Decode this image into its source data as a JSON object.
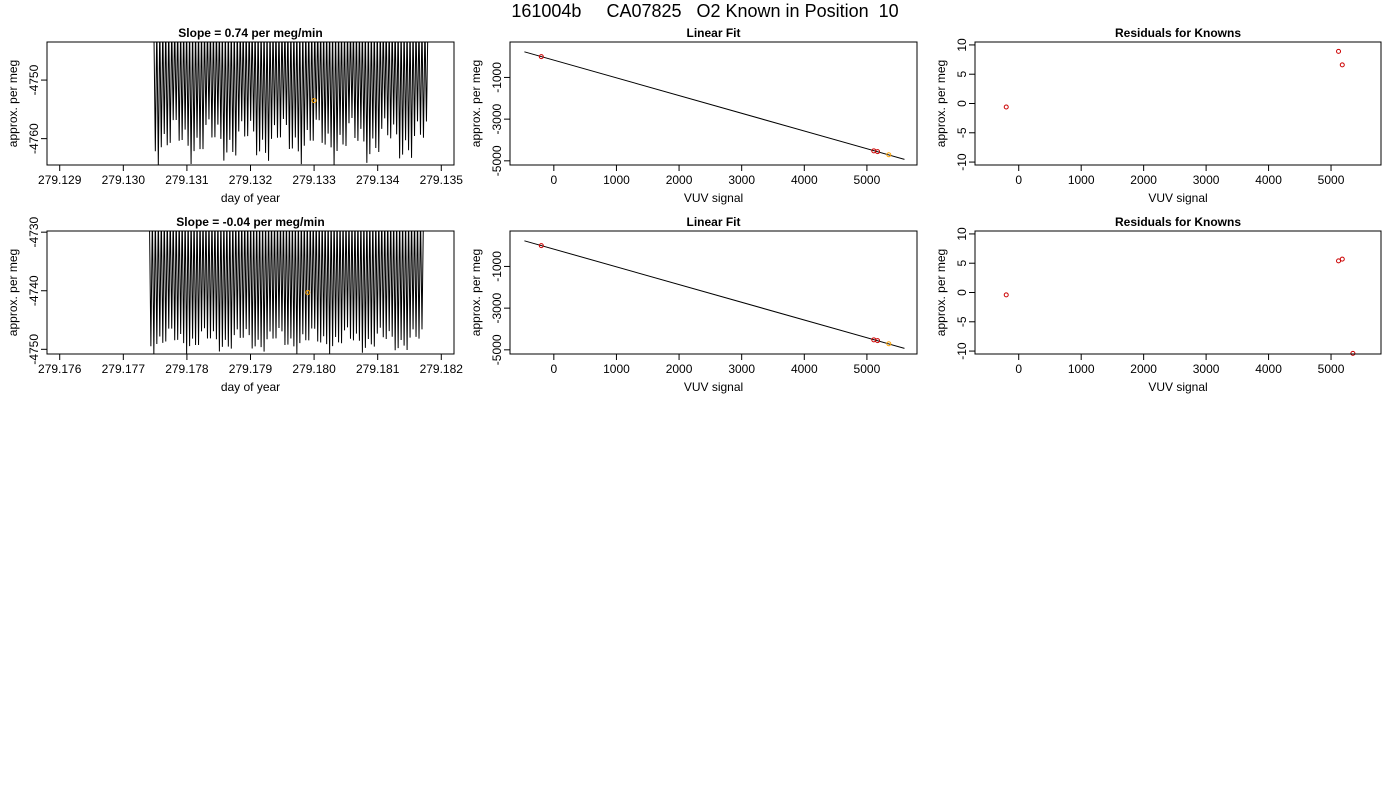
{
  "page_title": "161004b     CA07825   O2 Known in Position  10",
  "chart_data": [
    {
      "type": "line",
      "title": "Slope =  0.74  per meg/min",
      "xlabel": "day of year",
      "ylabel": "approx. per meg",
      "xlim": [
        279.1288,
        279.1352
      ],
      "ylim": [
        -4764.5,
        -4743.5
      ],
      "xticks": [
        "279.129",
        "279.130",
        "279.131",
        "279.132",
        "279.133",
        "279.134",
        "279.135"
      ],
      "yticks": [
        "-4750",
        "-4760"
      ],
      "ytick_values": [
        -4750,
        -4760
      ],
      "grid": false,
      "signal": {
        "x_start": 279.13048,
        "x_end": 279.13479,
        "n_cycles": 92,
        "y_high": -4743.5,
        "y_low_range": [
          -4756,
          -4764.5
        ]
      },
      "marker": {
        "x": 279.133,
        "y": -4753.5,
        "color": "#ffa500"
      }
    },
    {
      "type": "scatter",
      "title": "Linear Fit",
      "xlabel": "VUV signal",
      "ylabel": "approx. per meg",
      "xlim": [
        -700,
        5800
      ],
      "ylim": [
        -5200,
        700
      ],
      "xticks": [
        "0",
        "1000",
        "2000",
        "3000",
        "4000",
        "5000"
      ],
      "xtick_values": [
        0,
        1000,
        2000,
        3000,
        4000,
        5000
      ],
      "yticks": [
        "-1000",
        "-3000",
        "-5000"
      ],
      "ytick_values": [
        -1000,
        -3000,
        -5000
      ],
      "fit_line": [
        [
          -470,
          230
        ],
        [
          5600,
          -4930
        ]
      ],
      "points": [
        {
          "x": -200,
          "y": 0,
          "color": "#cc0000"
        },
        {
          "x": 5110,
          "y": -4520,
          "color": "#cc0000"
        },
        {
          "x": 5170,
          "y": -4560,
          "color": "#cc0000"
        },
        {
          "x": 5350,
          "y": -4710,
          "color": "#ffa500"
        }
      ]
    },
    {
      "type": "scatter",
      "title": "Residuals for Knowns",
      "xlabel": "VUV signal",
      "ylabel": "approx. per meg",
      "xlim": [
        -700,
        5800
      ],
      "ylim": [
        -10.5,
        10.5
      ],
      "xticks": [
        "0",
        "1000",
        "2000",
        "3000",
        "4000",
        "5000"
      ],
      "xtick_values": [
        0,
        1000,
        2000,
        3000,
        4000,
        5000
      ],
      "yticks": [
        "10",
        "5",
        "0",
        "-5",
        "-10"
      ],
      "ytick_values": [
        10,
        5,
        0,
        -5,
        -10
      ],
      "points": [
        {
          "x": -200,
          "y": -0.6,
          "color": "#cc0000"
        },
        {
          "x": 5120,
          "y": 8.9,
          "color": "#cc0000"
        },
        {
          "x": 5180,
          "y": 6.6,
          "color": "#cc0000"
        }
      ]
    },
    {
      "type": "line",
      "title": "Slope =  -0.04  per meg/min",
      "xlabel": "day of year",
      "ylabel": "approx. per meg",
      "xlim": [
        279.1758,
        279.1822
      ],
      "ylim": [
        -4750.8,
        -4729.8
      ],
      "xticks": [
        "279.176",
        "279.177",
        "279.178",
        "279.179",
        "279.180",
        "279.181",
        "279.182"
      ],
      "yticks": [
        "-4730",
        "-4740",
        "-4750"
      ],
      "ytick_values": [
        -4730,
        -4740,
        -4750
      ],
      "grid": false,
      "signal": {
        "x_start": 279.17741,
        "x_end": 279.18172,
        "n_cycles": 92,
        "y_high": -4729.8,
        "y_low_range": [
          -4746,
          -4750.8
        ]
      },
      "marker": {
        "x": 279.1799,
        "y": -4740.3,
        "color": "#ffa500"
      }
    },
    {
      "type": "scatter",
      "title": "Linear Fit",
      "xlabel": "VUV signal",
      "ylabel": "approx. per meg",
      "xlim": [
        -700,
        5800
      ],
      "ylim": [
        -5200,
        700
      ],
      "xticks": [
        "0",
        "1000",
        "2000",
        "3000",
        "4000",
        "5000"
      ],
      "xtick_values": [
        0,
        1000,
        2000,
        3000,
        4000,
        5000
      ],
      "yticks": [
        "-1000",
        "-3000",
        "-5000"
      ],
      "ytick_values": [
        -1000,
        -3000,
        -5000
      ],
      "fit_line": [
        [
          -470,
          230
        ],
        [
          5600,
          -4930
        ]
      ],
      "points": [
        {
          "x": -200,
          "y": 0,
          "color": "#cc0000"
        },
        {
          "x": 5110,
          "y": -4520,
          "color": "#cc0000"
        },
        {
          "x": 5170,
          "y": -4560,
          "color": "#cc0000"
        },
        {
          "x": 5350,
          "y": -4710,
          "color": "#ffa500"
        }
      ]
    },
    {
      "type": "scatter",
      "title": "Residuals for Knowns",
      "xlabel": "VUV signal",
      "ylabel": "approx. per meg",
      "xlim": [
        -700,
        5800
      ],
      "ylim": [
        -10.5,
        10.5
      ],
      "xticks": [
        "0",
        "1000",
        "2000",
        "3000",
        "4000",
        "5000"
      ],
      "xtick_values": [
        0,
        1000,
        2000,
        3000,
        4000,
        5000
      ],
      "yticks": [
        "10",
        "5",
        "0",
        "-5",
        "-10"
      ],
      "ytick_values": [
        10,
        5,
        0,
        -5,
        -10
      ],
      "points": [
        {
          "x": -200,
          "y": -0.4,
          "color": "#cc0000"
        },
        {
          "x": 5120,
          "y": 5.4,
          "color": "#cc0000"
        },
        {
          "x": 5180,
          "y": 5.7,
          "color": "#cc0000"
        },
        {
          "x": 5350,
          "y": -10.4,
          "color": "#cc0000"
        }
      ]
    }
  ]
}
